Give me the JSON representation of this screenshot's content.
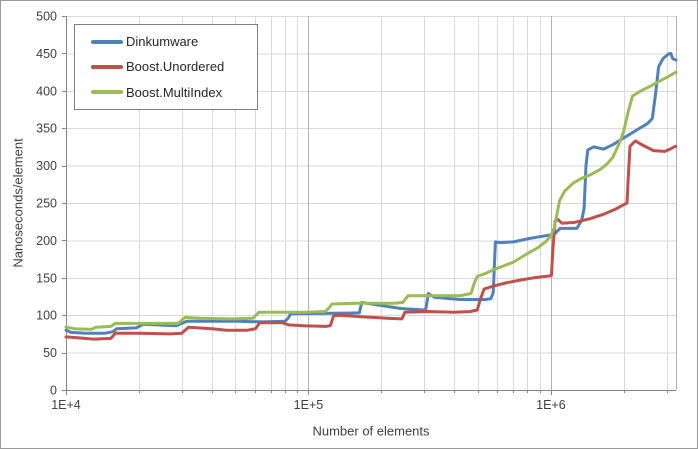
{
  "window": {
    "background": "#ffffff",
    "border_color": "#9a9a9a",
    "text_color": "#3f3f3f",
    "gridline_color": "#d9d9d9",
    "decade_gridline_color": "#b3b3b3",
    "axis_line_color": "#868686"
  },
  "chart_data": {
    "type": "line",
    "x_scale": "log",
    "xlabel": "Number of elements",
    "ylabel": "Nanoseconds/element",
    "xlim": [
      10000,
      3280000
    ],
    "ylim": [
      0,
      500
    ],
    "grid": true,
    "legend_position": "top-left",
    "y_ticks": [
      {
        "label": "0",
        "value": 0
      },
      {
        "label": "50",
        "value": 50
      },
      {
        "label": "100",
        "value": 100
      },
      {
        "label": "150",
        "value": 150
      },
      {
        "label": "200",
        "value": 200
      },
      {
        "label": "250",
        "value": 250
      },
      {
        "label": "300",
        "value": 300
      },
      {
        "label": "350",
        "value": 350
      },
      {
        "label": "400",
        "value": 400
      },
      {
        "label": "450",
        "value": 450
      },
      {
        "label": "500",
        "value": 500
      }
    ],
    "x_ticks": [
      {
        "label": "1E+4",
        "value": 10000
      },
      {
        "label": "1E+5",
        "value": 100000
      },
      {
        "label": "1E+6",
        "value": 1000000
      }
    ],
    "series": [
      {
        "name": "Dinkumware",
        "color": "#4F81BD",
        "points": [
          [
            10000,
            80
          ],
          [
            10500,
            77
          ],
          [
            12000,
            76
          ],
          [
            14500,
            76
          ],
          [
            15600,
            78
          ],
          [
            16200,
            82
          ],
          [
            19500,
            83
          ],
          [
            20800,
            88
          ],
          [
            28500,
            86
          ],
          [
            31500,
            92
          ],
          [
            50000,
            92
          ],
          [
            65000,
            91
          ],
          [
            80000,
            92
          ],
          [
            82500,
            96
          ],
          [
            84500,
            102
          ],
          [
            155000,
            103
          ],
          [
            162000,
            103
          ],
          [
            166000,
            117
          ],
          [
            200000,
            113
          ],
          [
            240000,
            109
          ],
          [
            300000,
            107
          ],
          [
            305000,
            108
          ],
          [
            312000,
            129
          ],
          [
            330000,
            124
          ],
          [
            420000,
            121
          ],
          [
            540000,
            121
          ],
          [
            565000,
            122
          ],
          [
            578000,
            130
          ],
          [
            590000,
            198
          ],
          [
            615000,
            197
          ],
          [
            700000,
            198
          ],
          [
            800000,
            202
          ],
          [
            900000,
            205
          ],
          [
            1030000,
            208
          ],
          [
            1060000,
            212
          ],
          [
            1090000,
            216
          ],
          [
            1280000,
            216
          ],
          [
            1340000,
            227
          ],
          [
            1370000,
            243
          ],
          [
            1395000,
            300
          ],
          [
            1420000,
            321
          ],
          [
            1500000,
            325
          ],
          [
            1650000,
            322
          ],
          [
            1800000,
            328
          ],
          [
            2000000,
            337
          ],
          [
            2300000,
            349
          ],
          [
            2500000,
            356
          ],
          [
            2620000,
            363
          ],
          [
            2700000,
            395
          ],
          [
            2780000,
            432
          ],
          [
            2900000,
            443
          ],
          [
            3050000,
            449
          ],
          [
            3120000,
            450
          ],
          [
            3180000,
            443
          ],
          [
            3280000,
            441
          ]
        ]
      },
      {
        "name": "Boost.Unordered",
        "color": "#C0504D",
        "points": [
          [
            10000,
            71
          ],
          [
            11000,
            70
          ],
          [
            13000,
            68
          ],
          [
            15300,
            69
          ],
          [
            16000,
            76
          ],
          [
            20000,
            76
          ],
          [
            27000,
            75
          ],
          [
            30000,
            76
          ],
          [
            32000,
            84
          ],
          [
            40000,
            82
          ],
          [
            46000,
            80
          ],
          [
            56000,
            80
          ],
          [
            60500,
            82
          ],
          [
            63000,
            90
          ],
          [
            78000,
            90
          ],
          [
            83000,
            87
          ],
          [
            95000,
            86
          ],
          [
            118000,
            85
          ],
          [
            123000,
            86
          ],
          [
            127000,
            99
          ],
          [
            135000,
            100
          ],
          [
            165000,
            98
          ],
          [
            210000,
            96
          ],
          [
            243000,
            95
          ],
          [
            250000,
            104
          ],
          [
            310000,
            105
          ],
          [
            400000,
            104
          ],
          [
            465000,
            105
          ],
          [
            497000,
            107
          ],
          [
            510000,
            120
          ],
          [
            530000,
            135
          ],
          [
            580000,
            139
          ],
          [
            650000,
            143
          ],
          [
            750000,
            147
          ],
          [
            850000,
            150
          ],
          [
            960000,
            152
          ],
          [
            1005000,
            153
          ],
          [
            1020000,
            190
          ],
          [
            1040000,
            226
          ],
          [
            1070000,
            228
          ],
          [
            1110000,
            223
          ],
          [
            1250000,
            224
          ],
          [
            1450000,
            229
          ],
          [
            1650000,
            235
          ],
          [
            1850000,
            242
          ],
          [
            1980000,
            247
          ],
          [
            2060000,
            250
          ],
          [
            2090000,
            290
          ],
          [
            2120000,
            326
          ],
          [
            2230000,
            333
          ],
          [
            2400000,
            327
          ],
          [
            2650000,
            320
          ],
          [
            2950000,
            319
          ],
          [
            3100000,
            322
          ],
          [
            3270000,
            326
          ]
        ]
      },
      {
        "name": "Boost.MultiIndex",
        "color": "#9BBB59",
        "points": [
          [
            10000,
            84
          ],
          [
            10800,
            82
          ],
          [
            12700,
            81
          ],
          [
            13300,
            84
          ],
          [
            15300,
            85
          ],
          [
            16000,
            89
          ],
          [
            29000,
            89
          ],
          [
            31000,
            97
          ],
          [
            36000,
            96
          ],
          [
            48000,
            95
          ],
          [
            59000,
            96
          ],
          [
            62500,
            104
          ],
          [
            98000,
            104
          ],
          [
            117000,
            105
          ],
          [
            121000,
            109
          ],
          [
            125000,
            115
          ],
          [
            158000,
            116
          ],
          [
            225000,
            116
          ],
          [
            245000,
            117
          ],
          [
            257000,
            126
          ],
          [
            420000,
            126
          ],
          [
            468000,
            129
          ],
          [
            483000,
            143
          ],
          [
            497000,
            152
          ],
          [
            540000,
            156
          ],
          [
            580000,
            161
          ],
          [
            640000,
            166
          ],
          [
            700000,
            171
          ],
          [
            760000,
            178
          ],
          [
            815000,
            184
          ],
          [
            880000,
            190
          ],
          [
            950000,
            198
          ],
          [
            1000000,
            206
          ],
          [
            1030000,
            216
          ],
          [
            1060000,
            236
          ],
          [
            1085000,
            253
          ],
          [
            1140000,
            266
          ],
          [
            1240000,
            277
          ],
          [
            1340000,
            283
          ],
          [
            1460000,
            288
          ],
          [
            1600000,
            295
          ],
          [
            1700000,
            302
          ],
          [
            1800000,
            311
          ],
          [
            1860000,
            321
          ],
          [
            1950000,
            336
          ],
          [
            2000000,
            347
          ],
          [
            2080000,
            371
          ],
          [
            2170000,
            393
          ],
          [
            2350000,
            400
          ],
          [
            2600000,
            407
          ],
          [
            2850000,
            414
          ],
          [
            3050000,
            419
          ],
          [
            3280000,
            425
          ]
        ]
      }
    ]
  }
}
